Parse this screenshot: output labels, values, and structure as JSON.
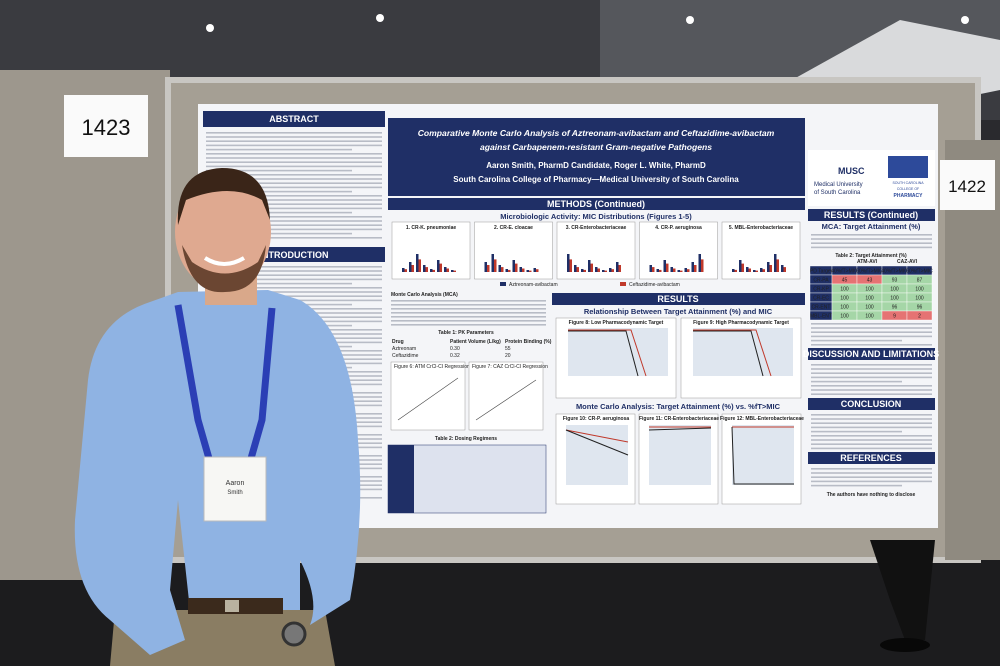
{
  "booth_left": "1423",
  "booth_right": "1422",
  "poster": {
    "title_line1": "Comparative Monte Carlo Analysis of Aztreonam-avibactam and Ceftazidime-avibactam",
    "title_line2": "against Carbapenem-resistant Gram-negative Pathogens",
    "authors": "Aaron Smith, PharmD Candidate, Roger L. White, PharmD",
    "institution": "South Carolina College of Pharmacy—Medical University of South Carolina",
    "logo_musc": "MUSC",
    "logo_musc_sub1": "Medical University",
    "logo_musc_sub2": "of South Carolina",
    "logo_sc1": "SOUTH CAROLINA",
    "logo_sc2": "COLLEGE OF",
    "logo_sc3": "PHARMACY",
    "abstract": "ABSTRACT",
    "introduction": "INTRODUCTION",
    "methods": "METHODS (Continued)",
    "mic_heading": "Microbiologic Activity: MIC Distributions (Figures 1-5)",
    "mic_figures": [
      "1. CR-K. pneumoniae",
      "2. CR-E. cloacae",
      "3. CR-Enterobacteriaceae",
      "4. CR-P. aeruginosa",
      "5. MBL-Enterobacteriaceae"
    ],
    "legend": [
      "Aztreonam-avibactam",
      "Ceftazidime-avibactam"
    ],
    "mca_heading": "Monte Carlo Analysis (MCA)",
    "table1_title": "Table 1: PK Parameters",
    "table1": [
      [
        "Drug",
        "Patient Volume (L/kg)",
        "Protein Binding (%)"
      ],
      [
        "Aztreonam",
        "0.30",
        "55"
      ],
      [
        "Ceftazidime",
        "0.32",
        "20"
      ]
    ],
    "figure6": "Figure 6: ATM CrCl-CI Regression",
    "figure7": "Figure 7: CAZ CrCl-CI Regression",
    "table2_title": "Table 2: Dosing Regimens",
    "results": "RESULTS",
    "relationship_heading": "Relationship Between Target Attainment (%) and MIC",
    "figure8": "Figure 8: Low Pharmacodynamic Target",
    "figure9": "Figure 9: High Pharmacodynamic Target",
    "fta_heading": "Monte Carlo Analysis: Target Attainment (%) vs. %fT>MIC",
    "figure10": "Figure 10: CR-P. aeruginosa",
    "figure11": "Figure 11: CR-Enterobacteriaceae",
    "figure12": "Figure 12: MBL-Enterobacteriaceae",
    "results_continued": "RESULTS (Continued)",
    "mca_target": "MCA: Target Attainment (%)",
    "table2_right_title": "Table 2: Target Attainment (%)",
    "ta_groups": [
      "ATM-AVI",
      "CAZ-AVI"
    ],
    "ta_table": [
      [
        "PD Target",
        "40%fT>MIC",
        "60%fT>MIC",
        "40%fT>MIC",
        "60%fT>MIC"
      ],
      [
        "CR-PA",
        "45",
        "43",
        "93",
        "87"
      ],
      [
        "CR-KP",
        "100",
        "100",
        "100",
        "100"
      ],
      [
        "CR-EC",
        "100",
        "100",
        "100",
        "100"
      ],
      [
        "CR-ENT",
        "100",
        "100",
        "96",
        "96"
      ],
      [
        "MBL-ENT",
        "100",
        "100",
        "9",
        "2"
      ]
    ],
    "discussion": "DISCUSSION AND LIMITATIONS",
    "conclusion": "CONCLUSION",
    "references": "REFERENCES",
    "disclosure": "The authors have nothing to disclose"
  },
  "badge": {
    "name": "Aaron",
    "surname": "Smith"
  }
}
